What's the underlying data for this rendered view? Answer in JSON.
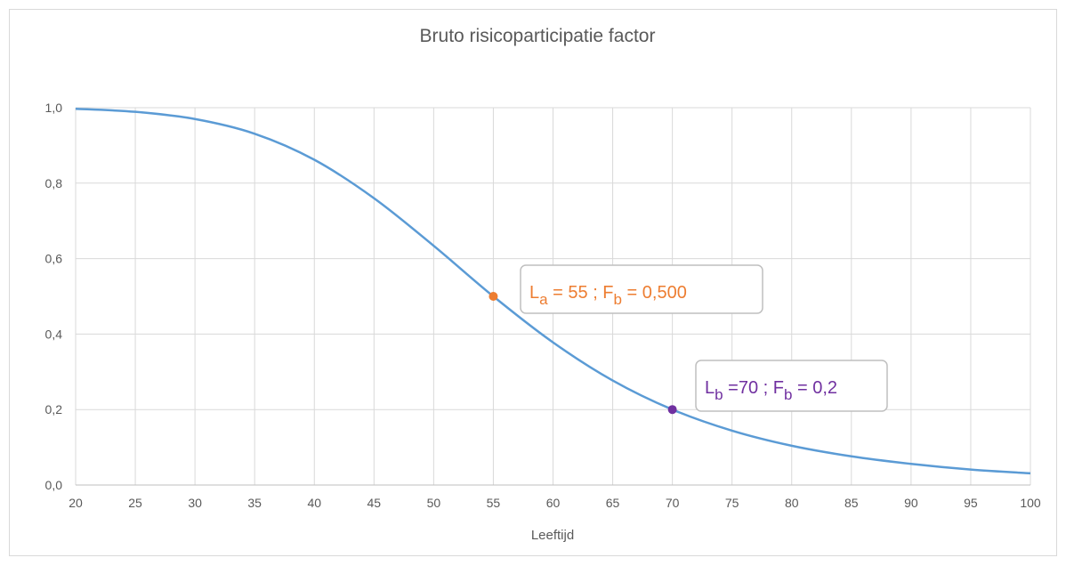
{
  "chart_data": {
    "type": "line",
    "title": "Bruto risicoparticipatie factor",
    "x_label": "Leeftijd",
    "x": [
      20,
      25,
      30,
      35,
      40,
      45,
      50,
      55,
      60,
      65,
      70,
      75,
      80,
      85,
      90,
      95,
      100
    ],
    "series": [
      {
        "color": "#5b9bd5",
        "values": [
          0.997,
          0.989,
          0.97,
          0.931,
          0.862,
          0.76,
          0.634,
          0.5,
          0.378,
          0.277,
          0.2,
          0.144,
          0.104,
          0.076,
          0.056,
          0.041,
          0.031
        ]
      }
    ],
    "xlim": [
      20,
      100
    ],
    "xticks": [
      20,
      25,
      30,
      35,
      40,
      45,
      50,
      55,
      60,
      65,
      70,
      75,
      80,
      85,
      90,
      95,
      100
    ],
    "ylim": [
      0,
      1
    ],
    "yticks": [
      {
        "value": 0,
        "label": "0,0"
      },
      {
        "value": 0.2,
        "label": "0,2"
      },
      {
        "value": 0.4,
        "label": "0,4"
      },
      {
        "value": 0.6,
        "label": "0,6"
      },
      {
        "value": 0.8,
        "label": "0,8"
      },
      {
        "value": 1,
        "label": "1,0"
      }
    ],
    "grid": true,
    "annotations": [
      {
        "x": 55,
        "y": 0.5,
        "color": "#ed7d31",
        "label": [
          "L",
          "a",
          " = 55 ; F",
          "b",
          " = 0,500"
        ]
      },
      {
        "x": 70,
        "y": 0.2,
        "color": "#7030a0",
        "label": [
          "L",
          "b",
          " =70 ; F",
          "b",
          " = 0,2"
        ]
      }
    ]
  }
}
